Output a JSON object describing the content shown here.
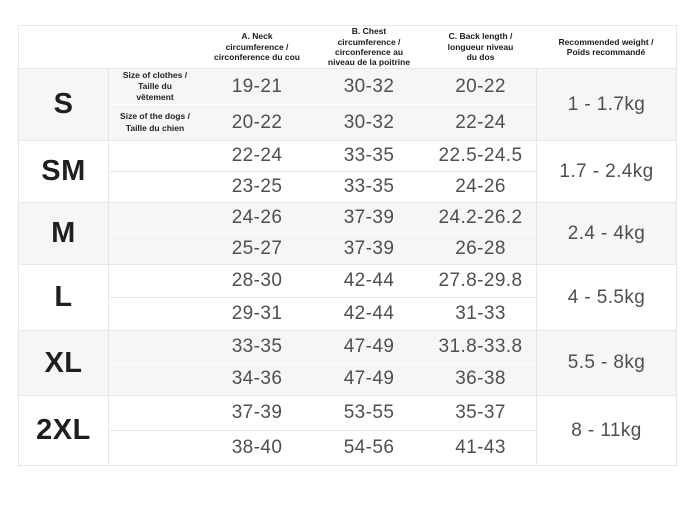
{
  "colors": {
    "line": "#e7e7e7",
    "shaded": "#f6f6f6",
    "valueText": "#4f4f4f",
    "headerText": "#1a1a1a",
    "sizeText": "#1f1f1f"
  },
  "table": {
    "headers": {
      "neck": "A. Neck\ncircumference /\ncirconference du cou",
      "chest": "B. Chest\ncircumference /\ncirconference au\nniveau de la poitrine",
      "back": "C. Back length /\nlongueur niveau\ndu dos",
      "weight": "Recommended weight /\nPoids recommandé"
    },
    "rows": [
      {
        "size": "S",
        "shaded": true,
        "weight": "1 - 1.7kg",
        "sub1": {
          "label": "Size of clothes /\nTaille du\nvêtement",
          "neck": "19-21",
          "chest": "30-32",
          "back": "20-22"
        },
        "sub2": {
          "label": "Size of the dogs /\nTaille du chien",
          "neck": "20-22",
          "chest": "30-32",
          "back": "22-24"
        }
      },
      {
        "size": "SM",
        "shaded": false,
        "weight": "1.7 - 2.4kg",
        "sub1": {
          "label": "",
          "neck": "22-24",
          "chest": "33-35",
          "back": "22.5-24.5"
        },
        "sub2": {
          "label": "",
          "neck": "23-25",
          "chest": "33-35",
          "back": "24-26"
        }
      },
      {
        "size": "M",
        "shaded": true,
        "weight": "2.4 - 4kg",
        "sub1": {
          "label": "",
          "neck": "24-26",
          "chest": "37-39",
          "back": "24.2-26.2"
        },
        "sub2": {
          "label": "",
          "neck": "25-27",
          "chest": "37-39",
          "back": "26-28"
        }
      },
      {
        "size": "L",
        "shaded": false,
        "weight": "4 - 5.5kg",
        "sub1": {
          "label": "",
          "neck": "28-30",
          "chest": "42-44",
          "back": "27.8-29.8"
        },
        "sub2": {
          "label": "",
          "neck": "29-31",
          "chest": "42-44",
          "back": "31-33"
        }
      },
      {
        "size": "XL",
        "shaded": true,
        "weight": "5.5 - 8kg",
        "sub1": {
          "label": "",
          "neck": "33-35",
          "chest": "47-49",
          "back": "31.8-33.8"
        },
        "sub2": {
          "label": "",
          "neck": "34-36",
          "chest": "47-49",
          "back": "36-38"
        }
      },
      {
        "size": "2XL",
        "shaded": false,
        "weight": "8 - 11kg",
        "sub1": {
          "label": "",
          "neck": "37-39",
          "chest": "53-55",
          "back": "35-37"
        },
        "sub2": {
          "label": "",
          "neck": "38-40",
          "chest": "54-56",
          "back": "41-43"
        }
      }
    ]
  }
}
